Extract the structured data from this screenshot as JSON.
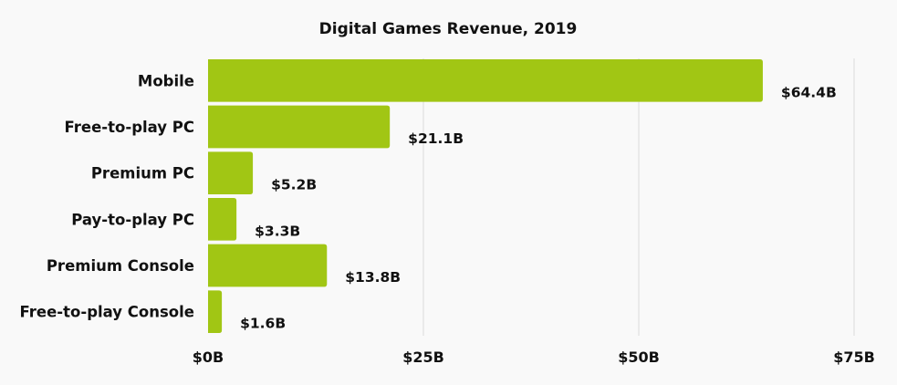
{
  "chart_data": {
    "type": "bar",
    "orientation": "horizontal",
    "title": "Digital Games Revenue, 2019",
    "xlabel": "",
    "ylabel": "",
    "categories": [
      "Mobile",
      "Free-to-play PC",
      "Premium PC",
      "Pay-to-play PC",
      "Premium Console",
      "Free-to-play Console"
    ],
    "values": [
      64.4,
      21.1,
      5.2,
      3.3,
      13.8,
      1.6
    ],
    "value_labels": [
      "$64.4B",
      "$21.1B",
      "$5.2B",
      "$3.3B",
      "$13.8B",
      "$1.6B"
    ],
    "unit": "billion USD",
    "xlim": [
      0,
      75
    ],
    "xticks": [
      0,
      25,
      50,
      75
    ],
    "xtick_labels": [
      "$0B",
      "$25B",
      "$50B",
      "$75B"
    ],
    "grid": true,
    "legend": "none",
    "bar_color": "#a1c614"
  }
}
